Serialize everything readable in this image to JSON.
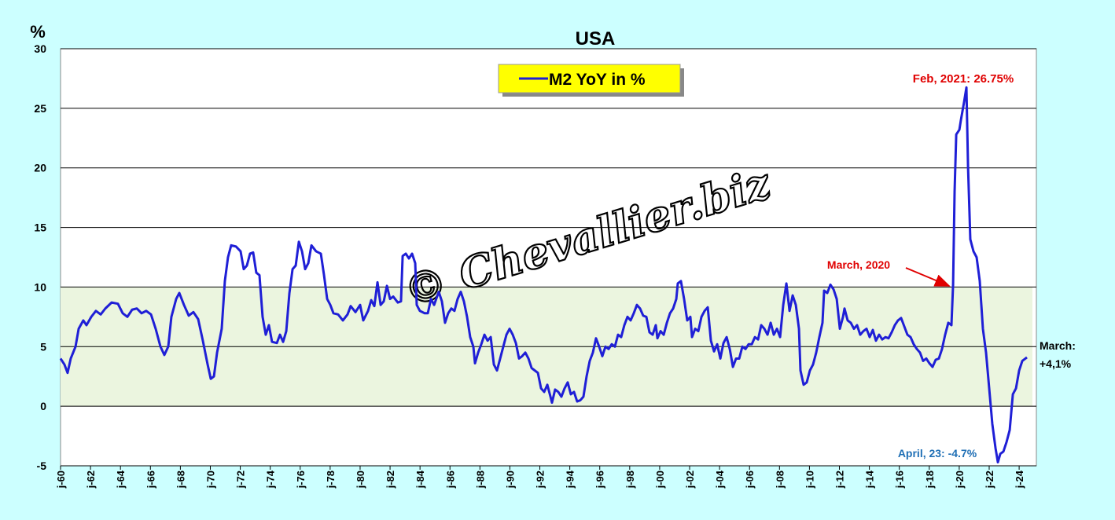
{
  "chart_data": {
    "type": "line",
    "title": "USA",
    "y_label": "%",
    "watermark": "© Chevallier.biz",
    "xlim": [
      1960,
      2025.15
    ],
    "ylim": [
      -5,
      30
    ],
    "yticks": [
      -5,
      0,
      5,
      10,
      15,
      20,
      25,
      30
    ],
    "xticks": [
      {
        "value": 1960,
        "label": "j-60"
      },
      {
        "value": 1962,
        "label": "j-62"
      },
      {
        "value": 1964,
        "label": "j-64"
      },
      {
        "value": 1966,
        "label": "j-66"
      },
      {
        "value": 1968,
        "label": "j-68"
      },
      {
        "value": 1970,
        "label": "j-70"
      },
      {
        "value": 1972,
        "label": "j-72"
      },
      {
        "value": 1974,
        "label": "j-74"
      },
      {
        "value": 1976,
        "label": "j-76"
      },
      {
        "value": 1978,
        "label": "j-78"
      },
      {
        "value": 1980,
        "label": "j-80"
      },
      {
        "value": 1982,
        "label": "j-82"
      },
      {
        "value": 1984,
        "label": "j-84"
      },
      {
        "value": 1986,
        "label": "j-86"
      },
      {
        "value": 1988,
        "label": "j-88"
      },
      {
        "value": 1990,
        "label": "j-90"
      },
      {
        "value": 1992,
        "label": "j-92"
      },
      {
        "value": 1994,
        "label": "j-94"
      },
      {
        "value": 1996,
        "label": "j-96"
      },
      {
        "value": 1998,
        "label": "j-98"
      },
      {
        "value": 2000,
        "label": "j-00"
      },
      {
        "value": 2002,
        "label": "j-02"
      },
      {
        "value": 2004,
        "label": "j-04"
      },
      {
        "value": 2006,
        "label": "j-06"
      },
      {
        "value": 2008,
        "label": "j-08"
      },
      {
        "value": 2010,
        "label": "j-10"
      },
      {
        "value": 2012,
        "label": "j-12"
      },
      {
        "value": 2014,
        "label": "j-14"
      },
      {
        "value": 2016,
        "label": "j-16"
      },
      {
        "value": 2018,
        "label": "j-18"
      },
      {
        "value": 2020,
        "label": "j-20"
      },
      {
        "value": 2022,
        "label": "j-22"
      },
      {
        "value": 2024,
        "label": "j-24"
      }
    ],
    "grid": true,
    "shaded_band": [
      0,
      10
    ],
    "shaded_band_color": "#ebf5df",
    "annotations": [
      "Feb, 2021: 26.75%",
      "March, 2020",
      "April, 23: -4.7%",
      "March:",
      "+4,1%"
    ],
    "x": [
      1960.0,
      1960.26,
      1960.47,
      1960.68,
      1961.0,
      1961.21,
      1961.52,
      1961.73,
      1962.05,
      1962.36,
      1962.68,
      1962.99,
      1963.41,
      1963.83,
      1964.15,
      1964.46,
      1964.78,
      1965.09,
      1965.41,
      1965.72,
      1966.04,
      1966.35,
      1966.67,
      1966.93,
      1967.19,
      1967.4,
      1967.72,
      1967.93,
      1968.24,
      1968.56,
      1968.87,
      1969.19,
      1969.5,
      1969.82,
      1970.03,
      1970.24,
      1970.45,
      1970.76,
      1970.97,
      1971.18,
      1971.39,
      1971.71,
      1972.02,
      1972.23,
      1972.44,
      1972.65,
      1972.86,
      1973.07,
      1973.28,
      1973.49,
      1973.7,
      1973.91,
      1974.12,
      1974.44,
      1974.65,
      1974.86,
      1975.07,
      1975.28,
      1975.49,
      1975.7,
      1975.91,
      1976.12,
      1976.33,
      1976.54,
      1976.75,
      1977.06,
      1977.38,
      1977.59,
      1977.8,
      1978.01,
      1978.22,
      1978.53,
      1978.85,
      1979.16,
      1979.37,
      1979.69,
      1980.0,
      1980.21,
      1980.53,
      1980.74,
      1980.95,
      1981.16,
      1981.37,
      1981.58,
      1981.79,
      1982.0,
      1982.21,
      1982.52,
      1982.73,
      1982.84,
      1983.05,
      1983.26,
      1983.47,
      1983.68,
      1983.78,
      1983.99,
      1984.31,
      1984.52,
      1984.73,
      1984.94,
      1985.25,
      1985.46,
      1985.67,
      1985.88,
      1986.09,
      1986.3,
      1986.51,
      1986.72,
      1986.93,
      1987.14,
      1987.35,
      1987.56,
      1987.67,
      1987.88,
      1988.09,
      1988.3,
      1988.51,
      1988.72,
      1988.93,
      1989.14,
      1989.35,
      1989.56,
      1989.77,
      1989.98,
      1990.19,
      1990.4,
      1990.61,
      1990.82,
      1991.03,
      1991.24,
      1991.45,
      1991.66,
      1991.87,
      1992.08,
      1992.29,
      1992.5,
      1992.71,
      1992.81,
      1993.02,
      1993.23,
      1993.44,
      1993.65,
      1993.86,
      1994.07,
      1994.28,
      1994.49,
      1994.7,
      1994.91,
      1995.12,
      1995.33,
      1995.54,
      1995.75,
      1995.96,
      1996.17,
      1996.38,
      1996.59,
      1996.8,
      1997.01,
      1997.22,
      1997.43,
      1997.64,
      1997.85,
      1998.06,
      1998.27,
      1998.48,
      1998.69,
      1998.9,
      1999.11,
      1999.32,
      1999.53,
      1999.74,
      1999.85,
      2000.06,
      2000.27,
      2000.48,
      2000.69,
      2000.9,
      2001.11,
      2001.21,
      2001.42,
      2001.63,
      2001.84,
      2002.05,
      2002.16,
      2002.37,
      2002.58,
      2002.79,
      2003.0,
      2003.21,
      2003.42,
      2003.63,
      2003.84,
      2004.05,
      2004.26,
      2004.47,
      2004.68,
      2004.89,
      2005.1,
      2005.31,
      2005.52,
      2005.73,
      2005.94,
      2006.15,
      2006.36,
      2006.57,
      2006.78,
      2006.99,
      2007.2,
      2007.41,
      2007.62,
      2007.83,
      2008.04,
      2008.25,
      2008.46,
      2008.67,
      2008.88,
      2009.09,
      2009.3,
      2009.4,
      2009.61,
      2009.82,
      2010.03,
      2010.24,
      2010.45,
      2010.66,
      2010.87,
      2010.98,
      2011.19,
      2011.4,
      2011.61,
      2011.82,
      2012.03,
      2012.24,
      2012.34,
      2012.55,
      2012.76,
      2012.97,
      2013.18,
      2013.39,
      2013.6,
      2013.81,
      2014.02,
      2014.23,
      2014.44,
      2014.65,
      2014.86,
      2015.07,
      2015.28,
      2015.49,
      2015.7,
      2015.91,
      2016.12,
      2016.33,
      2016.54,
      2016.75,
      2016.96,
      2017.17,
      2017.38,
      2017.59,
      2017.8,
      2018.01,
      2018.22,
      2018.43,
      2018.64,
      2018.85,
      2019.06,
      2019.27,
      2019.48,
      2019.59,
      2019.69,
      2019.8,
      2020.01,
      2020.11,
      2020.32,
      2020.48,
      2020.59,
      2020.74,
      2020.95,
      2021.16,
      2021.37,
      2021.58,
      2021.79,
      2022.0,
      2022.21,
      2022.42,
      2022.58,
      2022.74,
      2022.95,
      2023.16,
      2023.37,
      2023.58,
      2023.79,
      2024.0,
      2024.21,
      2024.42,
      2024.52
    ],
    "series": [
      {
        "name": "M2 YoY in %",
        "color": "#1f1fd6",
        "values": [
          4.0,
          3.5,
          2.8,
          4.0,
          5.0,
          6.5,
          7.2,
          6.8,
          7.5,
          8.0,
          7.7,
          8.2,
          8.7,
          8.6,
          7.8,
          7.5,
          8.1,
          8.2,
          7.8,
          8.0,
          7.7,
          6.5,
          5.0,
          4.3,
          5.0,
          7.5,
          9.0,
          9.5,
          8.5,
          7.6,
          7.9,
          7.3,
          5.5,
          3.5,
          2.3,
          2.5,
          4.5,
          6.5,
          10.5,
          12.5,
          13.5,
          13.4,
          13.0,
          11.5,
          11.8,
          12.8,
          12.9,
          11.2,
          11.0,
          7.5,
          6.0,
          6.8,
          5.4,
          5.3,
          6.0,
          5.4,
          6.3,
          9.5,
          11.5,
          11.8,
          13.8,
          13.0,
          11.5,
          12.0,
          13.5,
          13.0,
          12.8,
          11.0,
          9.0,
          8.5,
          7.8,
          7.7,
          7.2,
          7.7,
          8.4,
          7.9,
          8.5,
          7.2,
          8.0,
          8.9,
          8.4,
          10.4,
          8.5,
          8.8,
          10.1,
          9.0,
          9.2,
          8.7,
          8.8,
          12.6,
          12.8,
          12.4,
          12.8,
          12.0,
          8.5,
          8.0,
          7.8,
          7.8,
          9.0,
          8.5,
          9.6,
          8.8,
          7.0,
          7.8,
          8.2,
          8.0,
          9.0,
          9.6,
          8.8,
          7.5,
          5.8,
          5.0,
          3.6,
          4.5,
          5.2,
          6.0,
          5.5,
          5.8,
          3.5,
          3.0,
          4.0,
          5.0,
          6.0,
          6.5,
          6.0,
          5.3,
          4.0,
          4.2,
          4.5,
          4.0,
          3.2,
          3.0,
          2.8,
          1.5,
          1.2,
          1.8,
          0.8,
          0.3,
          1.4,
          1.2,
          0.8,
          1.5,
          2.0,
          1.0,
          1.2,
          0.4,
          0.5,
          0.8,
          2.5,
          3.8,
          4.5,
          5.7,
          5.0,
          4.2,
          5.0,
          4.8,
          5.2,
          5.0,
          6.0,
          5.8,
          6.8,
          7.5,
          7.2,
          7.8,
          8.5,
          8.2,
          7.6,
          7.5,
          6.2,
          6.0,
          6.8,
          5.7,
          6.3,
          6.0,
          7.0,
          7.8,
          8.2,
          9.0,
          10.3,
          10.5,
          9.0,
          7.2,
          7.5,
          5.8,
          6.5,
          6.3,
          7.5,
          8.0,
          8.3,
          5.5,
          4.6,
          5.2,
          4.0,
          5.3,
          5.8,
          4.8,
          3.3,
          4.0,
          4.0,
          5.0,
          4.8,
          5.2,
          5.2,
          5.8,
          5.6,
          6.8,
          6.5,
          6.0,
          7.0,
          6.0,
          6.5,
          5.8,
          8.5,
          10.3,
          8.0,
          9.3,
          8.5,
          6.5,
          3.0,
          1.8,
          2.0,
          3.0,
          3.5,
          4.5,
          5.8,
          7.0,
          9.7,
          9.5,
          10.2,
          9.8,
          9.0,
          6.5,
          7.5,
          8.2,
          7.2,
          7.0,
          6.5,
          6.8,
          6.0,
          6.3,
          6.5,
          5.8,
          6.4,
          5.5,
          6.0,
          5.6,
          5.8,
          5.7,
          6.2,
          6.8,
          7.2,
          7.4,
          6.7,
          6.0,
          5.8,
          5.2,
          4.8,
          4.5,
          3.8,
          4.0,
          3.6,
          3.3,
          3.9,
          4.0,
          4.8,
          6.0,
          7.0,
          6.8,
          10.2,
          18.0,
          22.8,
          23.2,
          24.0,
          25.5,
          26.75,
          20.0,
          14.0,
          13.0,
          12.5,
          10.5,
          6.5,
          4.5,
          1.5,
          -1.5,
          -3.5,
          -4.7,
          -4.0,
          -3.8,
          -3.0,
          -2.0,
          1.0,
          1.5,
          3.0,
          3.8,
          4.0,
          4.1
        ]
      }
    ]
  }
}
